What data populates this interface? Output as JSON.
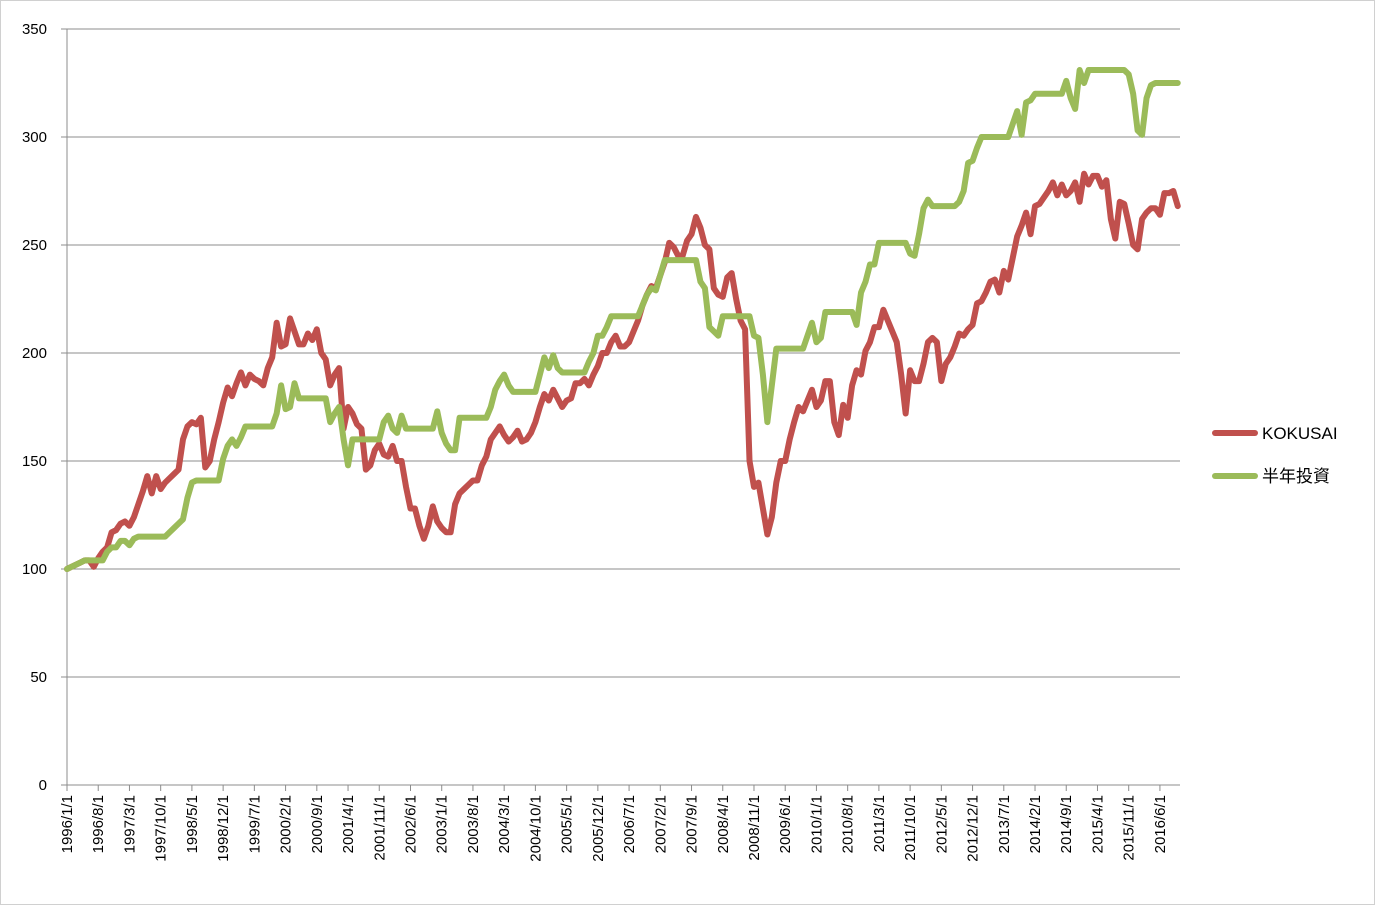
{
  "chart_data": {
    "type": "line",
    "categories": [
      "1996/1/1",
      null,
      null,
      null,
      null,
      null,
      null,
      "1996/8/1",
      null,
      null,
      null,
      null,
      null,
      null,
      "1997/3/1",
      null,
      null,
      null,
      null,
      null,
      null,
      "1997/10/1",
      null,
      null,
      null,
      null,
      null,
      null,
      "1998/5/1",
      null,
      null,
      null,
      null,
      null,
      null,
      "1998/12/1",
      null,
      null,
      null,
      null,
      null,
      null,
      "1999/7/1",
      null,
      null,
      null,
      null,
      null,
      null,
      "2000/2/1",
      null,
      null,
      null,
      null,
      null,
      null,
      "2000/9/1",
      null,
      null,
      null,
      null,
      null,
      null,
      "2001/4/1",
      null,
      null,
      null,
      null,
      null,
      null,
      "2001/11/1",
      null,
      null,
      null,
      null,
      null,
      null,
      "2002/6/1",
      null,
      null,
      null,
      null,
      null,
      null,
      "2003/1/1",
      null,
      null,
      null,
      null,
      null,
      null,
      "2003/8/1",
      null,
      null,
      null,
      null,
      null,
      null,
      "2004/3/1",
      null,
      null,
      null,
      null,
      null,
      null,
      "2004/10/1",
      null,
      null,
      null,
      null,
      null,
      null,
      "2005/5/1",
      null,
      null,
      null,
      null,
      null,
      null,
      "2005/12/1",
      null,
      null,
      null,
      null,
      null,
      null,
      "2006/7/1",
      null,
      null,
      null,
      null,
      null,
      null,
      "2007/2/1",
      null,
      null,
      null,
      null,
      null,
      null,
      "2007/9/1",
      null,
      null,
      null,
      null,
      null,
      null,
      "2008/4/1",
      null,
      null,
      null,
      null,
      null,
      null,
      "2008/11/1",
      null,
      null,
      null,
      null,
      null,
      null,
      "2009/6/1",
      null,
      null,
      null,
      null,
      null,
      null,
      "2010/1/1",
      null,
      null,
      null,
      null,
      null,
      null,
      "2010/8/1",
      null,
      null,
      null,
      null,
      null,
      null,
      "2011/3/1",
      null,
      null,
      null,
      null,
      null,
      null,
      "2011/10/1",
      null,
      null,
      null,
      null,
      null,
      null,
      "2012/5/1",
      null,
      null,
      null,
      null,
      null,
      null,
      "2012/12/1",
      null,
      null,
      null,
      null,
      null,
      null,
      "2013/7/1",
      null,
      null,
      null,
      null,
      null,
      null,
      "2014/2/1",
      null,
      null,
      null,
      null,
      null,
      null,
      "2014/9/1",
      null,
      null,
      null,
      null,
      null,
      null,
      "2015/4/1",
      null,
      null,
      null,
      null,
      null,
      null,
      "2015/11/1",
      null,
      null,
      null,
      null,
      null,
      null,
      "2016/6/1",
      null,
      null,
      null,
      null
    ],
    "series": [
      {
        "name": "KOKUSAI",
        "color": "#c0504d",
        "values": [
          100,
          101,
          102,
          103,
          104,
          104,
          101,
          105,
          108,
          110,
          117,
          118,
          121,
          122,
          120,
          124,
          130,
          136,
          143,
          135,
          143,
          137,
          140,
          142,
          144,
          146,
          160,
          166,
          168,
          167,
          170,
          147,
          150,
          160,
          168,
          177,
          184,
          180,
          186,
          191,
          185,
          190,
          188,
          187,
          185,
          193,
          198,
          214,
          203,
          204,
          216,
          210,
          204,
          204,
          209,
          206,
          211,
          200,
          197,
          185,
          190,
          193,
          165,
          175,
          172,
          167,
          165,
          146,
          148,
          155,
          158,
          153,
          152,
          157,
          150,
          150,
          138,
          128,
          128,
          120,
          114,
          120,
          129,
          122,
          119,
          117,
          117,
          130,
          135,
          137,
          139,
          141,
          141,
          148,
          152,
          160,
          163,
          166,
          162,
          159,
          161,
          164,
          159,
          160,
          163,
          168,
          175,
          181,
          178,
          183,
          179,
          175,
          178,
          179,
          186,
          186,
          188,
          185,
          190,
          194,
          200,
          200,
          205,
          208,
          203,
          203,
          205,
          210,
          215,
          222,
          227,
          231,
          230,
          236,
          242,
          251,
          249,
          245,
          245,
          252,
          255,
          263,
          258,
          250,
          248,
          230,
          227,
          226,
          235,
          237,
          225,
          215,
          211,
          150,
          138,
          140,
          128,
          116,
          124,
          140,
          150,
          150,
          160,
          168,
          175,
          173,
          178,
          183,
          175,
          178,
          187,
          187,
          168,
          162,
          176,
          170,
          185,
          192,
          190,
          201,
          205,
          212,
          212,
          220,
          215,
          210,
          205,
          190,
          172,
          192,
          187,
          187,
          195,
          205,
          207,
          205,
          187,
          195,
          198,
          203,
          209,
          208,
          211,
          213,
          223,
          224,
          228,
          233,
          234,
          228,
          238,
          234,
          244,
          254,
          259,
          265,
          255,
          268,
          269,
          272,
          275,
          279,
          273,
          278,
          273,
          275,
          279,
          270,
          283,
          278,
          282,
          282,
          277,
          280,
          262,
          253,
          270,
          269,
          260,
          250,
          248,
          262,
          265,
          267,
          267,
          264,
          274,
          274,
          275,
          268
        ]
      },
      {
        "name": "半年投資",
        "color": "#9bbb59",
        "values": [
          100,
          101,
          102,
          103,
          104,
          104,
          104,
          104,
          104,
          108,
          110,
          110,
          113,
          113,
          111,
          114,
          115,
          115,
          115,
          115,
          115,
          115,
          115,
          117,
          119,
          121,
          123,
          133,
          140,
          141,
          141,
          141,
          141,
          141,
          141,
          151,
          157,
          160,
          157,
          161,
          166,
          166,
          166,
          166,
          166,
          166,
          166,
          172,
          185,
          174,
          175,
          186,
          179,
          179,
          179,
          179,
          179,
          179,
          179,
          168,
          172,
          175,
          160,
          148,
          160,
          160,
          160,
          160,
          160,
          160,
          160,
          168,
          171,
          165,
          163,
          171,
          165,
          165,
          165,
          165,
          165,
          165,
          165,
          173,
          163,
          158,
          155,
          155,
          170,
          170,
          170,
          170,
          170,
          170,
          170,
          175,
          183,
          187,
          190,
          185,
          182,
          182,
          182,
          182,
          182,
          182,
          190,
          198,
          193,
          199,
          193,
          191,
          191,
          191,
          191,
          191,
          191,
          196,
          200,
          208,
          208,
          212,
          217,
          217,
          217,
          217,
          217,
          217,
          217,
          222,
          227,
          230,
          229,
          236,
          243,
          243,
          243,
          243,
          243,
          243,
          243,
          243,
          233,
          230,
          212,
          210,
          208,
          217,
          217,
          217,
          217,
          217,
          217,
          217,
          208,
          207,
          190,
          168,
          185,
          202,
          202,
          202,
          202,
          202,
          202,
          202,
          208,
          214,
          205,
          207,
          219,
          219,
          219,
          219,
          219,
          219,
          219,
          213,
          228,
          233,
          241,
          241,
          251,
          251,
          251,
          251,
          251,
          251,
          251,
          246,
          245,
          255,
          267,
          271,
          268,
          268,
          268,
          268,
          268,
          268,
          270,
          275,
          288,
          289,
          295,
          300,
          300,
          300,
          300,
          300,
          300,
          300,
          306,
          312,
          301,
          316,
          317,
          320,
          320,
          320,
          320,
          320,
          320,
          320,
          326,
          318,
          313,
          331,
          325,
          331,
          331,
          331,
          331,
          331,
          331,
          331,
          331,
          331,
          329,
          320,
          303,
          301,
          318,
          324,
          325,
          325,
          325,
          325,
          325,
          325
        ]
      }
    ],
    "ylim": [
      0,
      350
    ],
    "yticks": [
      0,
      50,
      100,
      150,
      200,
      250,
      300,
      350
    ],
    "grid": true,
    "legend": "right"
  }
}
